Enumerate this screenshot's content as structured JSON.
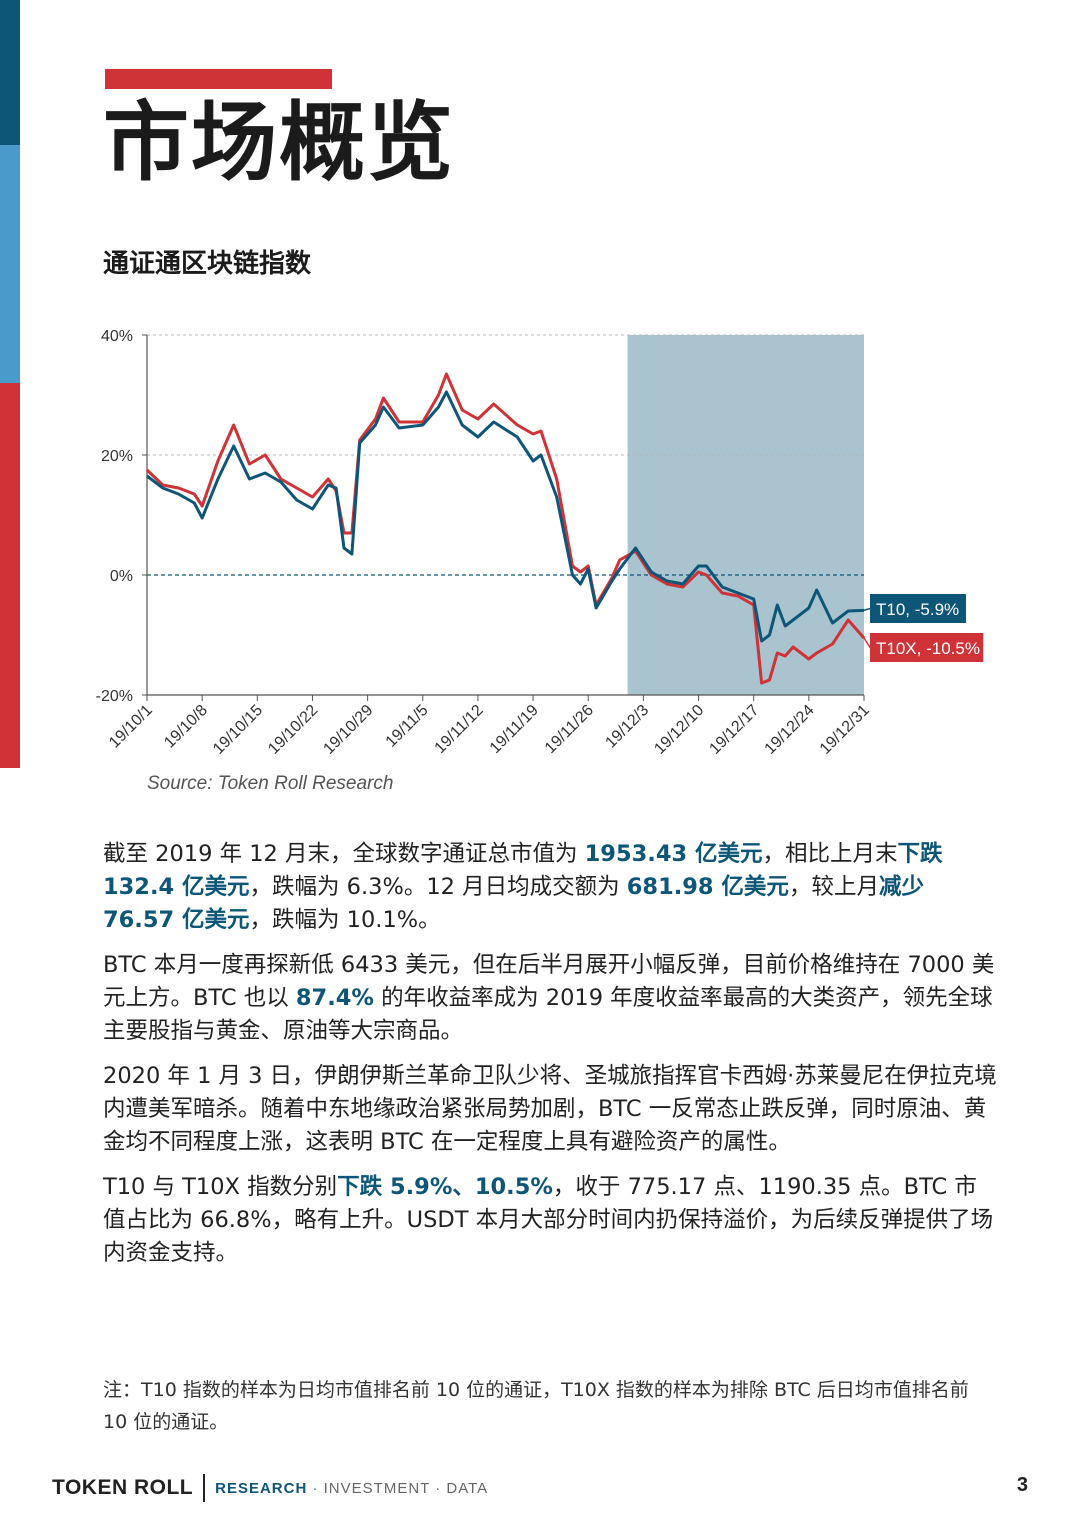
{
  "page": {
    "title": "市场概览",
    "page_number": "3"
  },
  "colors": {
    "brand_navy": "#0d5678",
    "brand_blue": "#4a9bcb",
    "brand_red": "#cf3237",
    "shade": "#a9c3cf"
  },
  "chart_title": "通证通区块链指数",
  "source": "Source: Token Roll Research",
  "chart_data": {
    "type": "line",
    "ylim": [
      -20,
      40
    ],
    "yticks": [
      40,
      20,
      0,
      -20
    ],
    "ytick_labels": [
      "40%",
      "20%",
      "0%",
      "-20%"
    ],
    "x_range": [
      "2019-10-01",
      "2019-12-31"
    ],
    "xtick_labels": [
      "19/10/1",
      "19/10/8",
      "19/10/15",
      "19/10/22",
      "19/10/29",
      "19/11/5",
      "19/11/12",
      "19/11/19",
      "19/11/26",
      "19/12/3",
      "19/12/10",
      "19/12/17",
      "19/12/24",
      "19/12/31"
    ],
    "shaded_range": [
      "2019-12-01",
      "2019-12-31"
    ],
    "reference_line": 0,
    "grid": true,
    "series": [
      {
        "name": "T10",
        "end_label": "T10, -5.9%",
        "color": "#0d5678",
        "points": [
          [
            "2019-10-01",
            16.5
          ],
          [
            "2019-10-03",
            14.5
          ],
          [
            "2019-10-05",
            13.5
          ],
          [
            "2019-10-07",
            12.0
          ],
          [
            "2019-10-08",
            9.5
          ],
          [
            "2019-10-10",
            16.0
          ],
          [
            "2019-10-12",
            21.5
          ],
          [
            "2019-10-14",
            16.0
          ],
          [
            "2019-10-16",
            17.0
          ],
          [
            "2019-10-18",
            15.5
          ],
          [
            "2019-10-20",
            12.5
          ],
          [
            "2019-10-22",
            11.0
          ],
          [
            "2019-10-24",
            15.0
          ],
          [
            "2019-10-25",
            14.5
          ],
          [
            "2019-10-26",
            4.5
          ],
          [
            "2019-10-27",
            3.5
          ],
          [
            "2019-10-28",
            22.0
          ],
          [
            "2019-10-30",
            25.0
          ],
          [
            "2019-10-31",
            28.0
          ],
          [
            "2019-11-02",
            24.5
          ],
          [
            "2019-11-05",
            25.0
          ],
          [
            "2019-11-07",
            28.0
          ],
          [
            "2019-11-08",
            30.5
          ],
          [
            "2019-11-10",
            25.0
          ],
          [
            "2019-11-12",
            23.0
          ],
          [
            "2019-11-14",
            25.5
          ],
          [
            "2019-11-17",
            23.0
          ],
          [
            "2019-11-19",
            19.0
          ],
          [
            "2019-11-20",
            20.0
          ],
          [
            "2019-11-22",
            13.0
          ],
          [
            "2019-11-24",
            0.0
          ],
          [
            "2019-11-25",
            -1.5
          ],
          [
            "2019-11-26",
            1.0
          ],
          [
            "2019-11-27",
            -5.5
          ],
          [
            "2019-11-29",
            -1.0
          ],
          [
            "2019-11-30",
            1.0
          ],
          [
            "2019-12-02",
            4.5
          ],
          [
            "2019-12-04",
            0.5
          ],
          [
            "2019-12-06",
            -1.0
          ],
          [
            "2019-12-08",
            -1.5
          ],
          [
            "2019-12-10",
            1.5
          ],
          [
            "2019-12-11",
            1.5
          ],
          [
            "2019-12-13",
            -2.0
          ],
          [
            "2019-12-15",
            -3.0
          ],
          [
            "2019-12-17",
            -4.0
          ],
          [
            "2019-12-18",
            -11.0
          ],
          [
            "2019-12-19",
            -10.0
          ],
          [
            "2019-12-20",
            -5.0
          ],
          [
            "2019-12-21",
            -8.5
          ],
          [
            "2019-12-22",
            -7.5
          ],
          [
            "2019-12-24",
            -5.5
          ],
          [
            "2019-12-25",
            -2.5
          ],
          [
            "2019-12-27",
            -8.0
          ],
          [
            "2019-12-29",
            -6.0
          ],
          [
            "2019-12-31",
            -5.9
          ]
        ]
      },
      {
        "name": "T10X",
        "end_label": "T10X, -10.5%",
        "color": "#cf3237",
        "points": [
          [
            "2019-10-01",
            17.5
          ],
          [
            "2019-10-03",
            15.0
          ],
          [
            "2019-10-05",
            14.5
          ],
          [
            "2019-10-07",
            13.5
          ],
          [
            "2019-10-08",
            11.5
          ],
          [
            "2019-10-10",
            19.0
          ],
          [
            "2019-10-12",
            25.0
          ],
          [
            "2019-10-14",
            18.5
          ],
          [
            "2019-10-16",
            20.0
          ],
          [
            "2019-10-18",
            16.0
          ],
          [
            "2019-10-20",
            14.5
          ],
          [
            "2019-10-22",
            13.0
          ],
          [
            "2019-10-24",
            16.0
          ],
          [
            "2019-10-25",
            14.0
          ],
          [
            "2019-10-26",
            7.0
          ],
          [
            "2019-10-27",
            7.0
          ],
          [
            "2019-10-28",
            22.5
          ],
          [
            "2019-10-30",
            26.0
          ],
          [
            "2019-10-31",
            29.5
          ],
          [
            "2019-11-02",
            25.5
          ],
          [
            "2019-11-05",
            25.5
          ],
          [
            "2019-11-07",
            30.0
          ],
          [
            "2019-11-08",
            33.5
          ],
          [
            "2019-11-10",
            27.5
          ],
          [
            "2019-11-12",
            26.0
          ],
          [
            "2019-11-14",
            28.5
          ],
          [
            "2019-11-17",
            25.0
          ],
          [
            "2019-11-19",
            23.5
          ],
          [
            "2019-11-20",
            24.0
          ],
          [
            "2019-11-22",
            16.0
          ],
          [
            "2019-11-24",
            1.5
          ],
          [
            "2019-11-25",
            0.5
          ],
          [
            "2019-11-26",
            1.5
          ],
          [
            "2019-11-27",
            -5.0
          ],
          [
            "2019-11-29",
            -0.5
          ],
          [
            "2019-11-30",
            2.5
          ],
          [
            "2019-12-02",
            4.0
          ],
          [
            "2019-12-04",
            0.0
          ],
          [
            "2019-12-06",
            -1.5
          ],
          [
            "2019-12-08",
            -2.0
          ],
          [
            "2019-12-10",
            0.5
          ],
          [
            "2019-12-11",
            0.0
          ],
          [
            "2019-12-13",
            -3.0
          ],
          [
            "2019-12-15",
            -3.5
          ],
          [
            "2019-12-17",
            -5.0
          ],
          [
            "2019-12-18",
            -18.0
          ],
          [
            "2019-12-19",
            -17.5
          ],
          [
            "2019-12-20",
            -13.0
          ],
          [
            "2019-12-21",
            -13.5
          ],
          [
            "2019-12-22",
            -12.0
          ],
          [
            "2019-12-24",
            -14.0
          ],
          [
            "2019-12-25",
            -13.0
          ],
          [
            "2019-12-27",
            -11.5
          ],
          [
            "2019-12-29",
            -7.5
          ],
          [
            "2019-12-31",
            -10.5
          ]
        ]
      }
    ]
  },
  "body": {
    "p1": {
      "a": "截至 2019 年 12 月末，全球数字通证总市值为 ",
      "b": "1953.43 亿美元",
      "c": "，相比上月末",
      "d": "下跌 132.4 亿美元",
      "e": "，跌幅为 6.3%。12 月日均成交额为 ",
      "f": "681.98 亿美元",
      "g": "，较上月",
      "h": "减少 76.57 亿美元",
      "i": "，跌幅为 10.1%。"
    },
    "p2": {
      "a": "BTC 本月一度再探新低 6433 美元，但在后半月展开小幅反弹，目前价格维持在 7000 美元上方。BTC 也以 ",
      "b": "87.4%",
      "c": " 的年收益率成为 2019 年度收益率最高的大类资产，领先全球主要股指与黄金、原油等大宗商品。"
    },
    "p3": "2020 年 1 月 3 日，伊朗伊斯兰革命卫队少将、圣城旅指挥官卡西姆·苏莱曼尼在伊拉克境内遭美军暗杀。随着中东地缘政治紧张局势加剧，BTC 一反常态止跌反弹，同时原油、黄金均不同程度上涨，这表明 BTC 在一定程度上具有避险资产的属性。",
    "p4": {
      "a": "T10 与 T10X 指数分别",
      "b": "下跌 5.9%、10.5%",
      "c": "，收于 775.17 点、1190.35 点。BTC 市值占比为 66.8%，略有上升。USDT 本月大部分时间内扔保持溢价，为后续反弹提供了场内资金支持。"
    }
  },
  "footnote": "注：T10 指数的样本为日均市值排名前 10 位的通证，T10X 指数的样本为排除 BTC 后日均市值排名前 10 位的通证。",
  "footer": {
    "brand": "TOKEN ROLL",
    "tag_research": "RESEARCH",
    "tag_rest": " · INVESTMENT · DATA"
  }
}
